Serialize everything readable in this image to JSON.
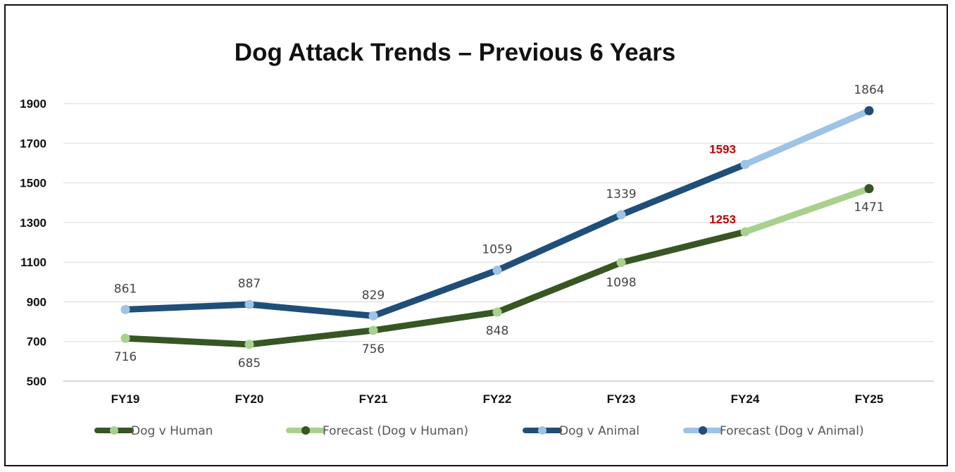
{
  "chart_data": {
    "type": "line",
    "title": "Dog Attack Trends – Previous 6 Years",
    "categories": [
      "FY19",
      "FY20",
      "FY21",
      "FY22",
      "FY23",
      "FY24",
      "FY25"
    ],
    "ylim": [
      500,
      1900
    ],
    "yticks": [
      500,
      700,
      900,
      1100,
      1300,
      1500,
      1700,
      1900
    ],
    "grid": true,
    "legend_position": "bottom",
    "series": [
      {
        "name": "Dog v Human",
        "line_color": "#375623",
        "marker_color": "#a9d18e",
        "values": [
          716,
          685,
          756,
          848,
          1098,
          1253,
          null
        ],
        "labels": [
          "716",
          "685",
          "756",
          "848",
          "1098",
          "1253",
          ""
        ]
      },
      {
        "name": "Forecast (Dog v Human)",
        "line_color": "#a9d18e",
        "marker_color": "#375623",
        "values": [
          null,
          null,
          null,
          null,
          null,
          1253,
          1471
        ],
        "labels": [
          "",
          "",
          "",
          "",
          "",
          "",
          "1471"
        ]
      },
      {
        "name": "Dog v Animal",
        "line_color": "#1f4e79",
        "marker_color": "#9dc3e6",
        "values": [
          861,
          887,
          829,
          1059,
          1339,
          1593,
          null
        ],
        "labels": [
          "861",
          "887",
          "829",
          "1059",
          "1339",
          "1593",
          ""
        ]
      },
      {
        "name": "Forecast (Dog v Animal)",
        "line_color": "#9dc3e6",
        "marker_color": "#1f4e79",
        "values": [
          null,
          null,
          null,
          null,
          null,
          1593,
          1864
        ],
        "labels": [
          "",
          "",
          "",
          "",
          "",
          "",
          "1864"
        ]
      }
    ],
    "highlight_labels": [
      "1253",
      "1593"
    ],
    "highlight_color": "#c00000"
  }
}
